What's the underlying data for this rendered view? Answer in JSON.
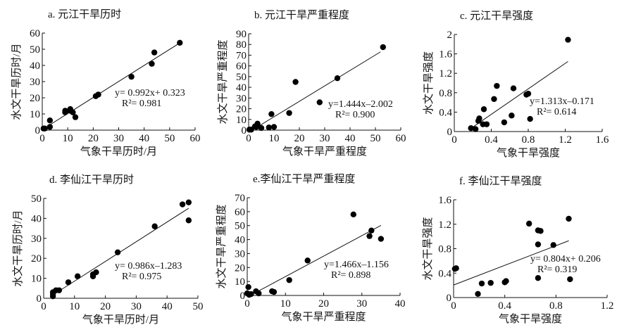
{
  "chart_data": [
    {
      "type": "scatter",
      "title": "a. 元江干旱历时",
      "xlabel": "气象干旱历时/月",
      "ylabel": "水文干旱历时/月",
      "xlim": [
        0,
        60
      ],
      "ylim": [
        0,
        60
      ],
      "xticks": [
        0,
        10,
        20,
        30,
        40,
        50,
        60
      ],
      "yticks": [
        0,
        10,
        20,
        30,
        40,
        50,
        60
      ],
      "points": [
        [
          0.5,
          1
        ],
        [
          1,
          1
        ],
        [
          3,
          6
        ],
        [
          3,
          2
        ],
        [
          9,
          12
        ],
        [
          9,
          11
        ],
        [
          11,
          13
        ],
        [
          11,
          12
        ],
        [
          12,
          11
        ],
        [
          13,
          8
        ],
        [
          21,
          21
        ],
        [
          22,
          22
        ],
        [
          35,
          33
        ],
        [
          43,
          41
        ],
        [
          44,
          48
        ],
        [
          54,
          54
        ]
      ],
      "fit": {
        "slope": 0.992,
        "intercept": 0.323,
        "x_range": [
          0,
          54
        ]
      },
      "equation": "y= 0.992x+ 0.323",
      "r2": "R²= 0.981"
    },
    {
      "type": "scatter",
      "title": "b. 元江干旱严重程度",
      "xlabel": "气象干旱严重程度",
      "ylabel": "水文干旱严重程度",
      "xlim": [
        0,
        60
      ],
      "ylim": [
        0,
        90
      ],
      "xticks": [
        0,
        10,
        20,
        30,
        40,
        50,
        60
      ],
      "yticks": [
        0,
        10,
        20,
        30,
        40,
        50,
        60,
        70,
        80,
        90
      ],
      "points": [
        [
          0.3,
          0.5
        ],
        [
          1,
          0.5
        ],
        [
          2.5,
          3.5
        ],
        [
          3,
          3
        ],
        [
          3.5,
          6
        ],
        [
          5,
          2
        ],
        [
          8,
          2.5
        ],
        [
          9,
          15
        ],
        [
          10,
          3
        ],
        [
          16,
          16
        ],
        [
          18.5,
          45
        ],
        [
          28,
          26
        ],
        [
          35,
          48.5
        ],
        [
          53,
          77.5
        ]
      ],
      "fit": {
        "slope": 1.444,
        "intercept": -2.002,
        "x_range": [
          3,
          52
        ]
      },
      "equation": "y=1.444x–2.002",
      "r2": "R²= 0.900"
    },
    {
      "type": "scatter",
      "title": "c. 元江干旱强度",
      "xlabel": "气象干旱强度",
      "ylabel": "水文干旱强度",
      "xlim": [
        0,
        1.6
      ],
      "ylim": [
        0,
        2
      ],
      "xticks": [
        "0",
        "0.4",
        "0.8",
        "1.2",
        "1.6"
      ],
      "yticks": [
        "0",
        "0.4",
        "0.8",
        "1.2",
        "1.6",
        "2"
      ],
      "points": [
        [
          0.18,
          0.07
        ],
        [
          0.23,
          0.05
        ],
        [
          0.26,
          0.22
        ],
        [
          0.27,
          0.27
        ],
        [
          0.31,
          0.15
        ],
        [
          0.32,
          0.46
        ],
        [
          0.35,
          0.15
        ],
        [
          0.43,
          0.67
        ],
        [
          0.46,
          0.94
        ],
        [
          0.54,
          0.19
        ],
        [
          0.62,
          0.33
        ],
        [
          0.64,
          0.89
        ],
        [
          0.78,
          0.76
        ],
        [
          0.8,
          0.78
        ],
        [
          0.82,
          0.26
        ],
        [
          1.23,
          1.89
        ]
      ],
      "fit": {
        "slope": 1.313,
        "intercept": -0.171,
        "x_range": [
          0.2,
          1.23
        ]
      },
      "equation": "y=1.313x–0.171",
      "r2": "R²= 0.614"
    },
    {
      "type": "scatter",
      "title": "d. 李仙江干旱历时",
      "xlabel": "气象干旱历时/月",
      "ylabel": "水文干旱历时/月",
      "xlim": [
        0,
        50
      ],
      "ylim": [
        0,
        50
      ],
      "xticks": [
        0,
        10,
        20,
        30,
        40,
        50
      ],
      "yticks": [
        0,
        10,
        20,
        30,
        40,
        50
      ],
      "points": [
        [
          3,
          1
        ],
        [
          3,
          2
        ],
        [
          3,
          3
        ],
        [
          4,
          4
        ],
        [
          5,
          4
        ],
        [
          8,
          8
        ],
        [
          11,
          11
        ],
        [
          16,
          11
        ],
        [
          16,
          12
        ],
        [
          17,
          13
        ],
        [
          24,
          23
        ],
        [
          36,
          36
        ],
        [
          45,
          47
        ],
        [
          47,
          48
        ],
        [
          47,
          39
        ]
      ],
      "fit": {
        "slope": 0.986,
        "intercept": -1.283,
        "x_range": [
          3,
          47
        ]
      },
      "equation": "y= 0.986x–1.283",
      "r2": "R²= 0.975"
    },
    {
      "type": "scatter",
      "title": "e.李仙江干旱严重程度",
      "xlabel": "气象干旱严重程度",
      "ylabel": "水文干旱严重程度",
      "xlim": [
        0,
        40
      ],
      "ylim": [
        0,
        70
      ],
      "xticks": [
        0,
        10,
        20,
        30,
        40
      ],
      "yticks": [
        0,
        10,
        20,
        30,
        40,
        50,
        60,
        70
      ],
      "points": [
        [
          0,
          1.5
        ],
        [
          0.3,
          6
        ],
        [
          0.5,
          0.5
        ],
        [
          1,
          1
        ],
        [
          2.3,
          3
        ],
        [
          3,
          1.5
        ],
        [
          6.5,
          3
        ],
        [
          7,
          2.5
        ],
        [
          11,
          11
        ],
        [
          15.8,
          25
        ],
        [
          27.8,
          58
        ],
        [
          32,
          42.5
        ],
        [
          32.5,
          46.5
        ],
        [
          35,
          40.5
        ]
      ],
      "fit": {
        "slope": 1.466,
        "intercept": -1.156,
        "x_range": [
          2,
          35
        ]
      },
      "equation": "y=1.466x–1.156",
      "r2": "R²= 0.898"
    },
    {
      "type": "scatter",
      "title": "f. 李仙江干旱强度",
      "xlabel": "气象干旱强度",
      "ylabel": "水文干旱强度",
      "xlim": [
        0,
        1.2
      ],
      "ylim": [
        0,
        1.6
      ],
      "xticks": [
        "0",
        "0.4",
        "0.8",
        "1.2"
      ],
      "yticks": [
        "0",
        "0.4",
        "0.8",
        "1.2",
        "1.6"
      ],
      "points": [
        [
          0.01,
          0.47
        ],
        [
          0.02,
          0.48
        ],
        [
          0.19,
          0.06
        ],
        [
          0.22,
          0.23
        ],
        [
          0.29,
          0.24
        ],
        [
          0.4,
          0.25
        ],
        [
          0.41,
          0.27
        ],
        [
          0.59,
          1.21
        ],
        [
          0.66,
          1.1
        ],
        [
          0.68,
          1.09
        ],
        [
          0.66,
          0.87
        ],
        [
          0.66,
          0.32
        ],
        [
          0.78,
          0.86
        ],
        [
          0.9,
          1.29
        ],
        [
          0.91,
          0.3
        ]
      ],
      "fit": {
        "slope": 0.804,
        "intercept": 0.206,
        "x_range": [
          0,
          0.9
        ]
      },
      "equation": "y= 0.804x+ 0.206",
      "r2": "R²= 0.319"
    }
  ]
}
